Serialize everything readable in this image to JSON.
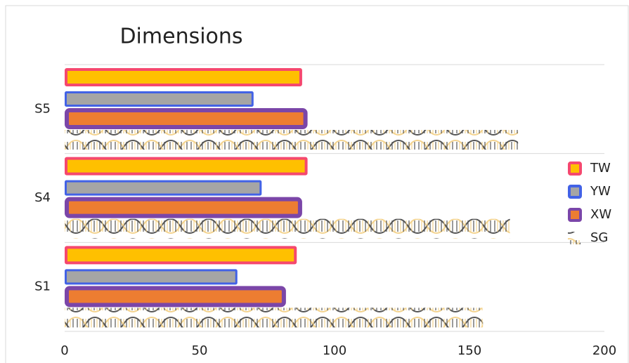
{
  "chart_data": {
    "type": "hbar",
    "title": "Dimensions",
    "categories": [
      "S1",
      "S4",
      "S5"
    ],
    "series": [
      {
        "name": "TW",
        "color": "#ffc000",
        "border": "#f5486e",
        "values": [
          86,
          90,
          88
        ]
      },
      {
        "name": "YW",
        "color": "#a5a5a5",
        "border": "#4262e6",
        "values": [
          64,
          73,
          70
        ]
      },
      {
        "name": "XW",
        "color": "#ed7d31",
        "border": "#7b46a8",
        "values": [
          82,
          88,
          90
        ]
      },
      {
        "name": "SG",
        "color": "#f3d38f",
        "border": "#555555",
        "values": [
          155,
          165,
          168
        ]
      }
    ],
    "xlim": [
      0,
      200
    ],
    "xticks": [
      0,
      50,
      100,
      150,
      200
    ]
  }
}
